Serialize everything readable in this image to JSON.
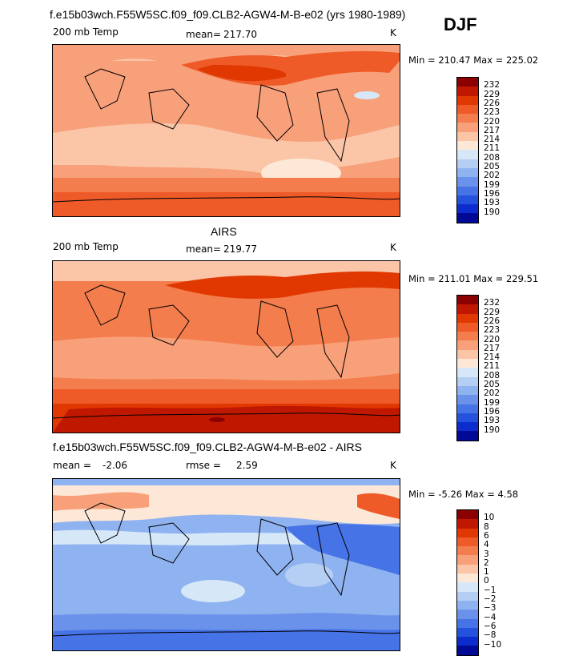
{
  "header": {
    "case_title": "f.e15b03wch.F55W5SC.f09_f09.CLB2-AGW4-M-B-e02 (yrs 1980-1989)",
    "season": "DJF"
  },
  "panels": [
    {
      "title": "",
      "field_label": "200 mb Temp",
      "mean_label": "mean=",
      "mean_value": "217.70",
      "extra_label": "",
      "extra_value": "",
      "units": "K",
      "minmax_text": "Min = 210.47 Max = 225.02",
      "colorbar": {
        "labels": [
          "232",
          "229",
          "226",
          "223",
          "220",
          "217",
          "214",
          "211",
          "208",
          "205",
          "202",
          "199",
          "196",
          "193",
          "190"
        ],
        "colors": [
          "#8b0000",
          "#c01800",
          "#e03800",
          "#ee5a28",
          "#f47d4d",
          "#f8a07a",
          "#fbc5a8",
          "#fde8d8",
          "#d6e8f8",
          "#b4cef4",
          "#8fb2f0",
          "#6a92ea",
          "#4673e6",
          "#2452dc",
          "#0c2ccd",
          "#000a96"
        ]
      }
    },
    {
      "title": "AIRS",
      "field_label": "200 mb Temp",
      "mean_label": "mean=",
      "mean_value": "219.77",
      "extra_label": "",
      "extra_value": "",
      "units": "K",
      "minmax_text": "Min = 211.01 Max = 229.51",
      "colorbar": {
        "labels": [
          "232",
          "229",
          "226",
          "223",
          "220",
          "217",
          "214",
          "211",
          "208",
          "205",
          "202",
          "199",
          "196",
          "193",
          "190"
        ],
        "colors": [
          "#8b0000",
          "#c01800",
          "#e03800",
          "#ee5a28",
          "#f47d4d",
          "#f8a07a",
          "#fbc5a8",
          "#fde8d8",
          "#d6e8f8",
          "#b4cef4",
          "#8fb2f0",
          "#6a92ea",
          "#4673e6",
          "#2452dc",
          "#0c2ccd",
          "#000a96"
        ]
      }
    },
    {
      "title": "f.e15b03wch.F55W5SC.f09_f09.CLB2-AGW4-M-B-e02 - AIRS",
      "field_label": "",
      "mean_label": "mean =",
      "mean_value": "-2.06",
      "extra_label": "rmse =",
      "extra_value": "2.59",
      "units": "K",
      "minmax_text": "Min =  -5.26 Max =   4.58",
      "colorbar": {
        "labels": [
          "10",
          "8",
          "6",
          "4",
          "3",
          "2",
          "1",
          "0",
          "−1",
          "−2",
          "−3",
          "−4",
          "−6",
          "−8",
          "−10"
        ],
        "colors": [
          "#8b0000",
          "#c01800",
          "#e03800",
          "#ee5a28",
          "#f47d4d",
          "#f8a07a",
          "#fbc5a8",
          "#fde8d8",
          "#d6e8f8",
          "#b4cef4",
          "#8fb2f0",
          "#6a92ea",
          "#4673e6",
          "#2452dc",
          "#0c2ccd",
          "#000a96"
        ]
      }
    }
  ]
}
